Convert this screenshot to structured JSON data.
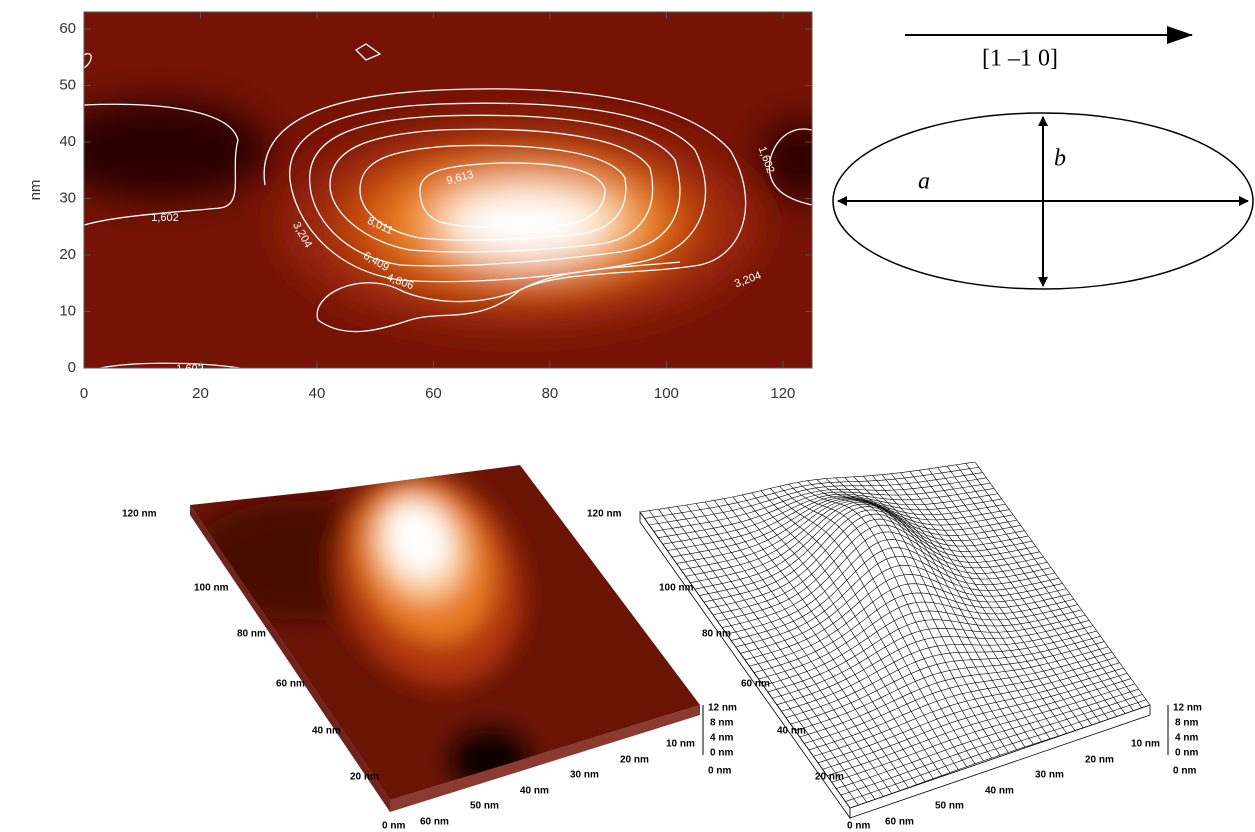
{
  "chart_data": {
    "type": "contour",
    "ylabel": "nm",
    "xlim": [
      0,
      125
    ],
    "ylim": [
      0,
      63
    ],
    "xticks": [
      0,
      20,
      40,
      60,
      80,
      100,
      120
    ],
    "yticks": [
      0,
      10,
      20,
      30,
      40,
      50,
      60
    ],
    "contour_labels": [
      "1,602",
      "1,602",
      "1,602",
      "3,204",
      "3,204",
      "4,806",
      "6,409",
      "8,011",
      "9,613"
    ]
  },
  "diagram": {
    "direction": "[1 –1 0]",
    "major_axis": "a",
    "minor_axis": "b"
  },
  "surfaces": {
    "depth_labels": [
      "120 nm",
      "100 nm",
      "80 nm",
      "60 nm",
      "40 nm",
      "20 nm"
    ],
    "width_labels": [
      "0 nm",
      "60 nm",
      "50 nm",
      "40 nm",
      "30 nm",
      "20 nm",
      "10 nm",
      "0 nm"
    ],
    "height_labels": [
      "12 nm",
      "8 nm",
      "4 nm",
      "0 nm"
    ]
  }
}
